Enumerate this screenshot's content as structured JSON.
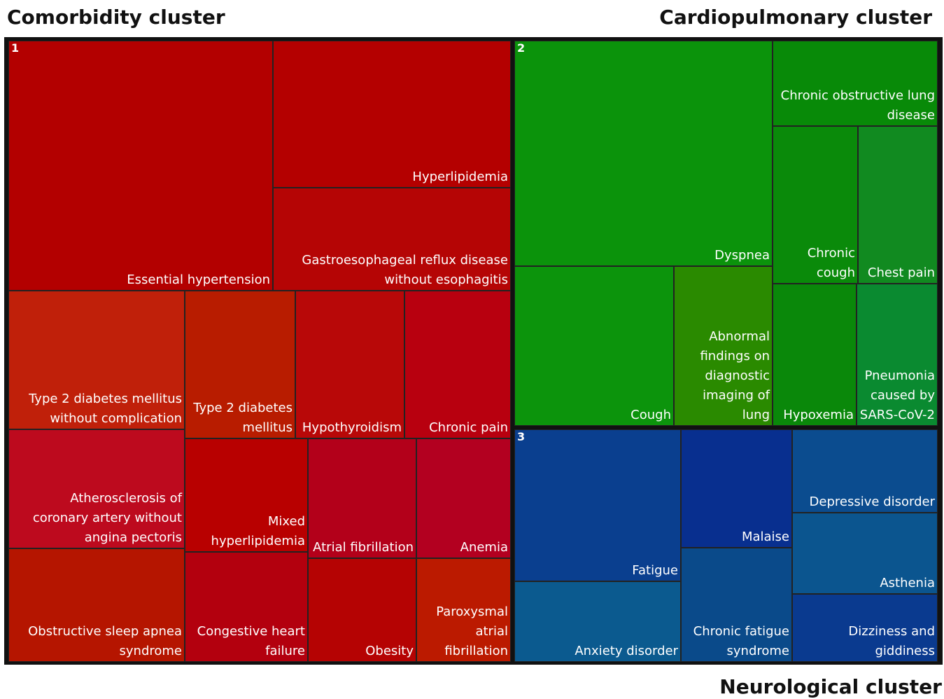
{
  "clusters": [
    {
      "title": "Comorbidity cluster",
      "number": "1",
      "nodes": [
        {
          "label": "Essential hypertension",
          "color": "#b30000"
        },
        {
          "label": "Hyperlipidemia",
          "color": "#b40000"
        },
        {
          "label": "Gastroesophageal reflux disease without esophagitis",
          "color": "#b50505"
        },
        {
          "label": "Type 2 diabetes mellitus without complication",
          "color": "#c0200a"
        },
        {
          "label": "Type 2 diabetes mellitus",
          "color": "#b81c00"
        },
        {
          "label": "Hypothyroidism",
          "color": "#b80808"
        },
        {
          "label": "Chronic pain",
          "color": "#b8000f"
        },
        {
          "label": "Atherosclerosis of coronary artery without angina pectoris",
          "color": "#bd0a1e"
        },
        {
          "label": "Mixed hyperlipidemia",
          "color": "#b80000"
        },
        {
          "label": "Atrial fibrillation",
          "color": "#b3001a"
        },
        {
          "label": "Anemia",
          "color": "#b30020"
        },
        {
          "label": "Obstructive sleep apnea syndrome",
          "color": "#b51500"
        },
        {
          "label": "Congestive heart failure",
          "color": "#b3000e"
        },
        {
          "label": "Obesity",
          "color": "#b50303"
        },
        {
          "label": "Paroxysmal atrial fibrillation",
          "color": "#bb1a00"
        }
      ]
    },
    {
      "title": "Cardiopulmonary cluster",
      "number": "2",
      "nodes": [
        {
          "label": "Dyspnea",
          "color": "#0b930b"
        },
        {
          "label": "Chronic obstructive lung disease",
          "color": "#088a08"
        },
        {
          "label": "Chronic cough",
          "color": "#0a8a0a"
        },
        {
          "label": "Chest pain",
          "color": "#118a20"
        },
        {
          "label": "Cough",
          "color": "#0c940c"
        },
        {
          "label": "Abnormal findings on diagnostic imaging of lung",
          "color": "#2a8a00"
        },
        {
          "label": "Hypoxemia",
          "color": "#0a880a"
        },
        {
          "label": "Pneumonia caused by SARS-CoV-2",
          "color": "#0a8a30"
        }
      ]
    },
    {
      "title": "Neurological cluster",
      "number": "3",
      "nodes": [
        {
          "label": "Fatigue",
          "color": "#0a3f8f"
        },
        {
          "label": "Malaise",
          "color": "#082f8f"
        },
        {
          "label": "Depressive disorder",
          "color": "#0b4c8f"
        },
        {
          "label": "Anxiety disorder",
          "color": "#0b5a8f"
        },
        {
          "label": "Chronic fatigue syndrome",
          "color": "#0a4a8a"
        },
        {
          "label": "Asthenia",
          "color": "#0b558f"
        },
        {
          "label": "Dizziness and giddiness",
          "color": "#0a3a8f"
        }
      ]
    }
  ]
}
